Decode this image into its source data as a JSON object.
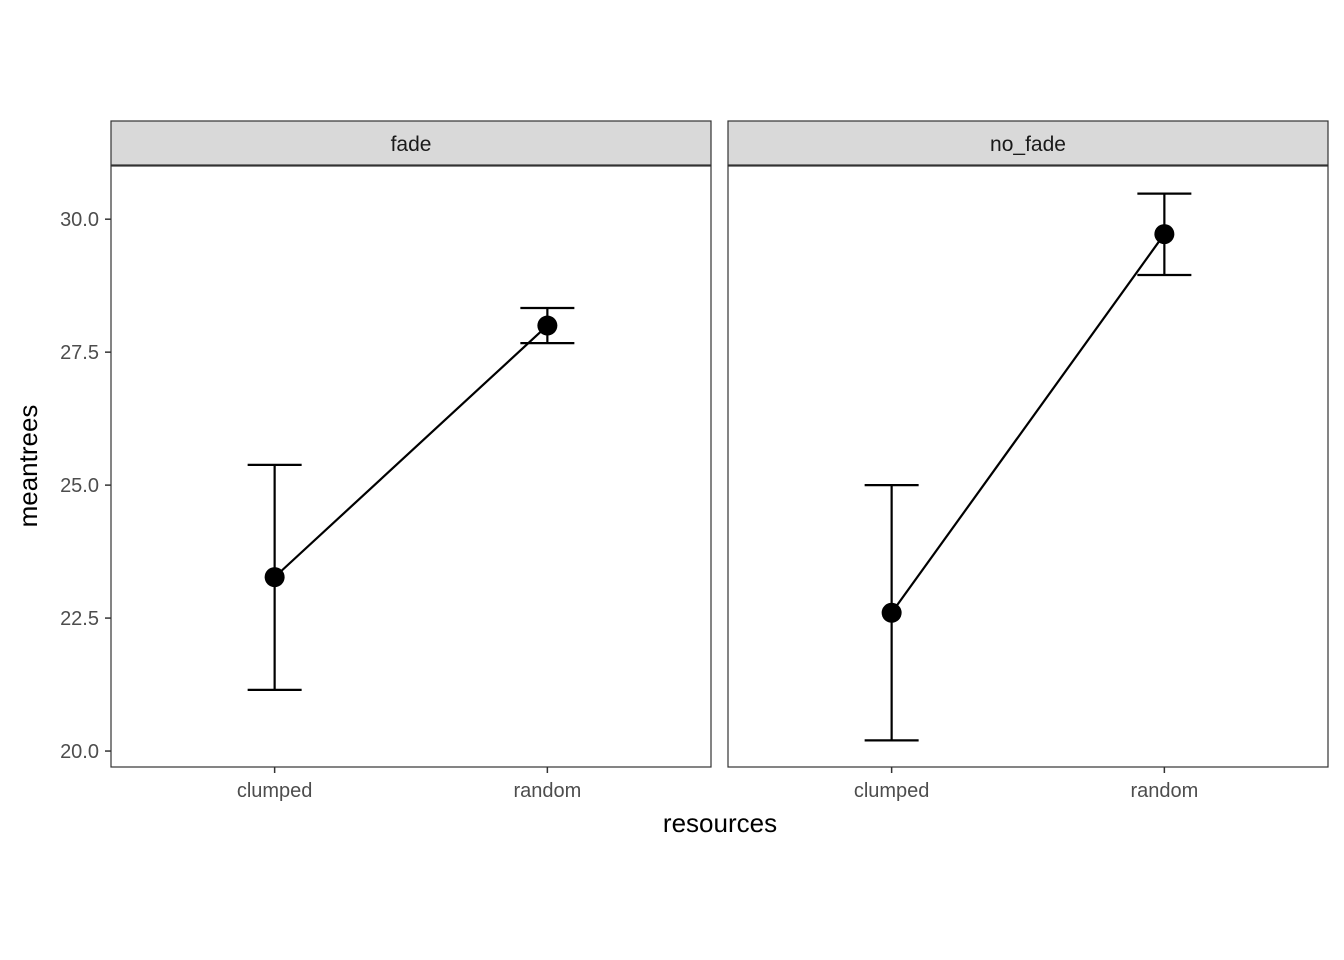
{
  "chart_data": {
    "type": "line",
    "xlabel": "resources",
    "ylabel": "meantrees",
    "ylim": [
      19.7,
      31.0
    ],
    "yticks": [
      20.0,
      22.5,
      25.0,
      27.5,
      30.0
    ],
    "ytick_labels": [
      "20.0",
      "22.5",
      "25.0",
      "27.5",
      "30.0"
    ],
    "categories": [
      "clumped",
      "random"
    ],
    "grid": false,
    "facets": [
      {
        "label": "fade",
        "points": [
          {
            "x": "clumped",
            "y": 23.27,
            "ymin": 21.15,
            "ymax": 25.38
          },
          {
            "x": "random",
            "y": 28.0,
            "ymin": 27.67,
            "ymax": 28.33
          }
        ]
      },
      {
        "label": "no_fade",
        "points": [
          {
            "x": "clumped",
            "y": 22.6,
            "ymin": 20.2,
            "ymax": 25.0
          },
          {
            "x": "random",
            "y": 29.72,
            "ymin": 28.95,
            "ymax": 30.48
          }
        ]
      }
    ]
  }
}
